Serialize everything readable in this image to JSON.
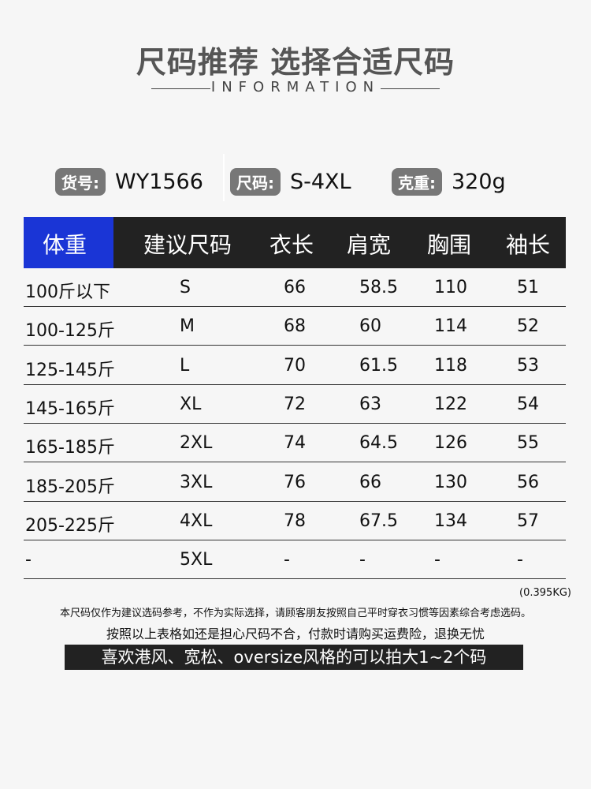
{
  "header": {
    "title": "尺码推荐 选择合适尺码",
    "subtitle": "INFORMATION"
  },
  "info": [
    {
      "label": "货号:",
      "value": "WY1566"
    },
    {
      "label": "尺码:",
      "value": "S-4XL"
    },
    {
      "label": "克重:",
      "value": "320g"
    }
  ],
  "table": {
    "headers": [
      "体重",
      "建议尺码",
      "衣长",
      "肩宽",
      "胸围",
      "袖长"
    ],
    "rows": [
      [
        "100斤以下",
        "S",
        "66",
        "58.5",
        "110",
        "51"
      ],
      [
        "100-125斤",
        "M",
        "68",
        "60",
        "114",
        "52"
      ],
      [
        "125-145斤",
        "L",
        "70",
        "61.5",
        "118",
        "53"
      ],
      [
        "145-165斤",
        "XL",
        "72",
        "63",
        "122",
        "54"
      ],
      [
        "165-185斤",
        "2XL",
        "74",
        "64.5",
        "126",
        "55"
      ],
      [
        "185-205斤",
        "3XL",
        "76",
        "66",
        "130",
        "56"
      ],
      [
        "205-225斤",
        "4XL",
        "78",
        "67.5",
        "134",
        "57"
      ],
      [
        "-",
        "5XL",
        "-",
        "-",
        "-",
        "-"
      ]
    ]
  },
  "notes": {
    "weight": "(0.395KG)",
    "disclaimer": "本尺码仅作为建议选码参考，不作为实际选择，请顾客朋友按照自己平时穿衣习惯等因素综合考虑选码。",
    "insurance": "按照以上表格如还是担心尺码不合，付款时请购买运费险，退换无忧",
    "banner": "喜欢港风、宽松、oversize风格的可以拍大1~2个码"
  },
  "colors": {
    "accent": "#1a35d6",
    "header_bg": "#222222",
    "tag_bg": "#777777"
  }
}
